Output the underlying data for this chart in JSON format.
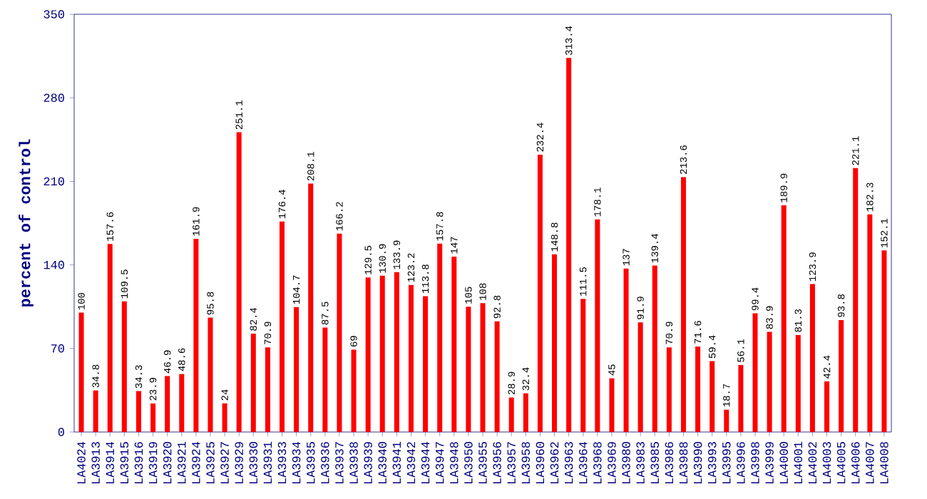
{
  "chart_data": {
    "type": "bar",
    "ylabel": "percent of control",
    "categories": [
      "LA4024",
      "LA3913",
      "LA3914",
      "LA3915",
      "LA3916",
      "LA3919",
      "LA3920",
      "LA3921",
      "LA3924",
      "LA3925",
      "LA3927",
      "LA3929",
      "LA3930",
      "LA3931",
      "LA3933",
      "LA3934",
      "LA3935",
      "LA3936",
      "LA3937",
      "LA3938",
      "LA3939",
      "LA3940",
      "LA3941",
      "LA3942",
      "LA3944",
      "LA3947",
      "LA3948",
      "LA3950",
      "LA3955",
      "LA3956",
      "LA3957",
      "LA3958",
      "LA3960",
      "LA3962",
      "LA3963",
      "LA3964",
      "LA3968",
      "LA3969",
      "LA3980",
      "LA3983",
      "LA3985",
      "LA3986",
      "LA3988",
      "LA3990",
      "LA3993",
      "LA3995",
      "LA3996",
      "LA3998",
      "LA3999",
      "LA4000",
      "LA4001",
      "LA4002",
      "LA4003",
      "LA4005",
      "LA4006",
      "LA4007",
      "LA4008"
    ],
    "values": [
      100,
      34.8,
      157.6,
      109.5,
      34.3,
      23.9,
      46.9,
      48.6,
      161.9,
      95.8,
      24,
      251.1,
      82.4,
      70.9,
      176.4,
      104.7,
      208.1,
      87.5,
      166.2,
      69,
      129.5,
      130.9,
      133.9,
      123.2,
      113.8,
      157.8,
      147,
      105,
      108,
      92.8,
      28.9,
      32.4,
      232.4,
      148.8,
      313.4,
      111.5,
      178.1,
      45,
      137,
      91.9,
      139.4,
      70.9,
      213.6,
      71.6,
      59.4,
      18.7,
      56.1,
      99.4,
      83.9,
      189.9,
      81.3,
      123.9,
      42.4,
      93.8,
      221.1,
      182.3,
      152.1
    ],
    "color": "#ff0000",
    "ylim": [
      0,
      350
    ],
    "yticks": [
      0,
      70,
      140,
      210,
      280,
      350
    ],
    "data_labels": true
  }
}
